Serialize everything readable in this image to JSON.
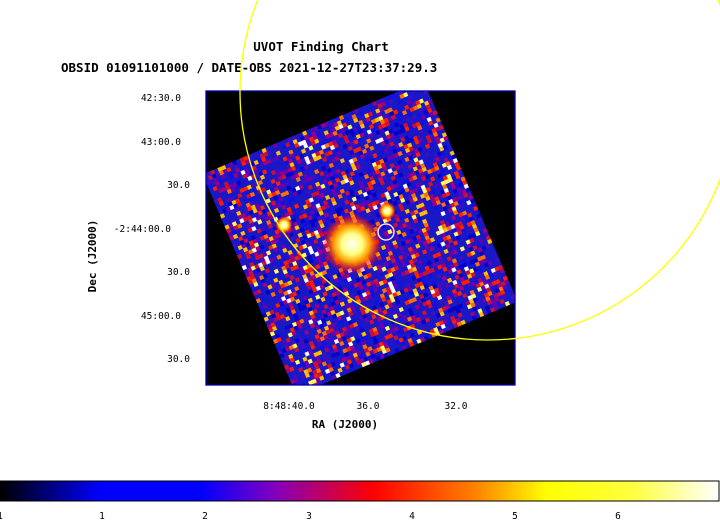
{
  "chart_data": {
    "type": "heatmap",
    "title": "UVOT Finding Chart",
    "subtitle": "OBSID 01091101000 / DATE-OBS 2021-12-27T23:37:29.3",
    "xlabel": "RA (J2000)",
    "ylabel": "Dec (J2000)",
    "x_ticks": [
      "8:48:40.0",
      "36.0",
      "32.0"
    ],
    "y_ticks": [
      "42:30.0",
      "43:00.0",
      "30.0",
      "-2:44:00.0",
      "30.0",
      "45:00.0",
      "30.0"
    ],
    "colorbar": {
      "ticks": [
        "1",
        "1",
        "2",
        "3",
        "4",
        "5",
        "6"
      ],
      "colormap": "heat",
      "stops": [
        "#000000",
        "#0000ff",
        "#ff0000",
        "#ffff00",
        "#ffffff"
      ]
    },
    "sources": [
      {
        "name": "bright-extended-source",
        "brightness": "saturated"
      },
      {
        "name": "compact-source-west",
        "brightness": "bright"
      },
      {
        "name": "compact-source-north",
        "brightness": "bright"
      }
    ],
    "overlays": [
      {
        "name": "large-error-circle",
        "color": "#ffff00"
      },
      {
        "name": "small-source-circle",
        "color": "#ffffff"
      }
    ],
    "frame_color": "#0000aa",
    "background_color": "#000000"
  }
}
